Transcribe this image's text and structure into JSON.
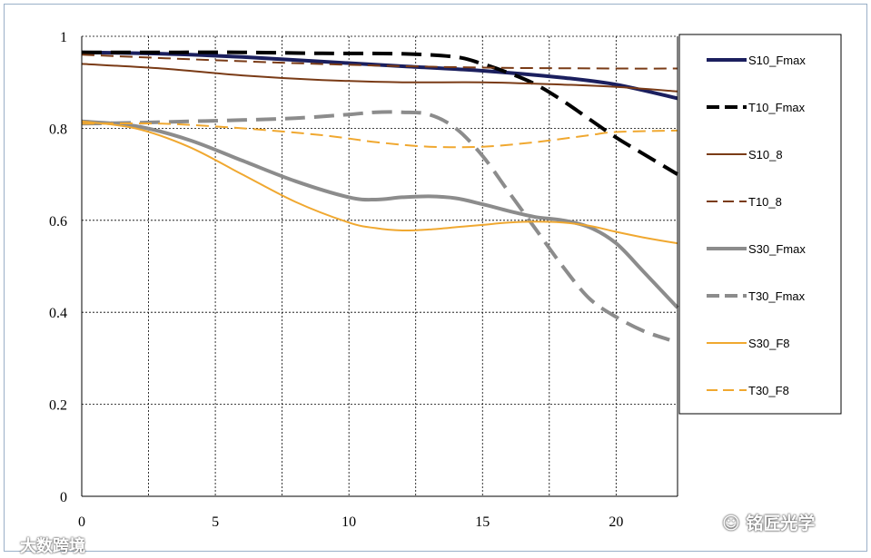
{
  "chart_data": {
    "type": "line",
    "xlim": [
      0,
      22.3
    ],
    "ylim": [
      0,
      1
    ],
    "x_ticks": [
      0,
      5,
      10,
      15,
      20
    ],
    "y_ticks": [
      0,
      0.2,
      0.4,
      0.6,
      0.8,
      1
    ],
    "x_tick_labels": [
      "0",
      "5",
      "10",
      "15",
      "20"
    ],
    "y_tick_labels": [
      "0",
      "0.2",
      "0.4",
      "0.6",
      "0.8",
      "1"
    ],
    "grid": true,
    "legend_position": "right",
    "series": [
      {
        "name": "S10_Fmax",
        "color": "#1b1f5e",
        "width": 4,
        "dash": "solid",
        "x": [
          0,
          3,
          6,
          9,
          12,
          15,
          18,
          20,
          22.3
        ],
        "y": [
          0.965,
          0.962,
          0.955,
          0.945,
          0.935,
          0.925,
          0.91,
          0.895,
          0.865
        ]
      },
      {
        "name": "T10_Fmax",
        "color": "#000000",
        "width": 4,
        "dash": "dashed",
        "x": [
          0,
          3,
          6,
          9,
          12,
          14,
          15,
          16,
          17,
          18,
          19,
          20,
          21,
          22.3
        ],
        "y": [
          0.965,
          0.965,
          0.965,
          0.963,
          0.962,
          0.955,
          0.94,
          0.92,
          0.895,
          0.86,
          0.82,
          0.78,
          0.745,
          0.7
        ]
      },
      {
        "name": "S10_8",
        "color": "#7a3b16",
        "width": 2,
        "dash": "solid",
        "x": [
          0,
          3,
          6,
          9,
          12,
          15,
          18,
          20,
          22.3
        ],
        "y": [
          0.94,
          0.93,
          0.915,
          0.905,
          0.9,
          0.9,
          0.895,
          0.89,
          0.88
        ]
      },
      {
        "name": "T10_8",
        "color": "#7a3b16",
        "width": 2,
        "dash": "dashed",
        "x": [
          0,
          5,
          10,
          15,
          20,
          22.3
        ],
        "y": [
          0.96,
          0.948,
          0.938,
          0.932,
          0.93,
          0.93
        ]
      },
      {
        "name": "S30_Fmax",
        "color": "#8c8c8c",
        "width": 4,
        "dash": "solid",
        "x": [
          0,
          2,
          4,
          6,
          8,
          10,
          11,
          12,
          13,
          14,
          15,
          16,
          17,
          18,
          19,
          20,
          21,
          22.3
        ],
        "y": [
          0.815,
          0.805,
          0.775,
          0.73,
          0.685,
          0.65,
          0.645,
          0.65,
          0.652,
          0.648,
          0.635,
          0.62,
          0.607,
          0.6,
          0.585,
          0.55,
          0.49,
          0.41
        ]
      },
      {
        "name": "T30_Fmax",
        "color": "#8c8c8c",
        "width": 4,
        "dash": "dashed",
        "x": [
          0,
          2,
          4,
          6,
          8,
          10,
          11,
          12,
          13,
          14,
          15,
          16,
          17,
          18,
          19,
          20,
          21,
          22
        ],
        "y": [
          0.81,
          0.812,
          0.815,
          0.818,
          0.822,
          0.83,
          0.835,
          0.835,
          0.83,
          0.8,
          0.74,
          0.66,
          0.58,
          0.5,
          0.43,
          0.39,
          0.36,
          0.34
        ]
      },
      {
        "name": "S30_F8",
        "color": "#f0a830",
        "width": 2,
        "dash": "solid",
        "x": [
          0,
          2,
          4,
          6,
          8,
          10,
          11,
          12,
          13,
          14,
          15,
          16,
          17,
          18,
          19,
          20,
          21,
          22.3
        ],
        "y": [
          0.815,
          0.8,
          0.76,
          0.7,
          0.64,
          0.595,
          0.583,
          0.578,
          0.58,
          0.585,
          0.59,
          0.595,
          0.597,
          0.595,
          0.588,
          0.575,
          0.563,
          0.55
        ]
      },
      {
        "name": "T30_F8",
        "color": "#f0a830",
        "width": 2,
        "dash": "dashed",
        "x": [
          0,
          3,
          6,
          9,
          11,
          13,
          15,
          17,
          19,
          20,
          22.3
        ],
        "y": [
          0.81,
          0.81,
          0.8,
          0.785,
          0.77,
          0.76,
          0.76,
          0.77,
          0.785,
          0.792,
          0.795
        ]
      }
    ]
  },
  "watermarks": {
    "left": "大数跨境",
    "right": "铭匠光学"
  }
}
